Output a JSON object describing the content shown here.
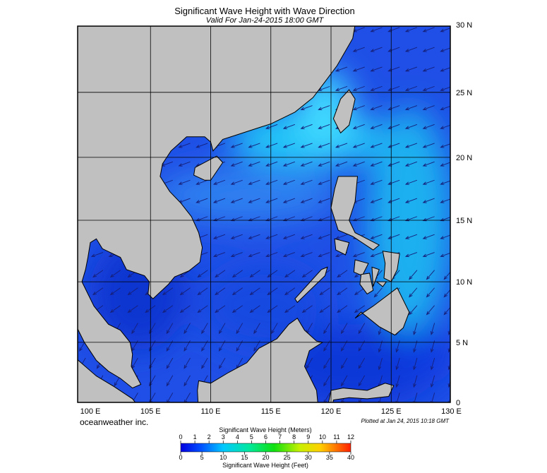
{
  "map": {
    "title": "Significant Wave Height with Wave Direction",
    "subtitle": "Valid For Jan-24-2015 18:00 GMT",
    "lon_labels": [
      "100 E",
      "105 E",
      "110 E",
      "115 E",
      "120 E",
      "125 E",
      "130 E"
    ],
    "lat_labels": [
      "30 N",
      "25 N",
      "20 N",
      "15 N",
      "10 N",
      "5 N",
      "0"
    ],
    "credit": "oceanweather inc.",
    "plotted": "Plotted at Jan 24, 2015 10:18 GMT"
  },
  "colorbar": {
    "meters_title": "Significant Wave Height (Meters)",
    "meters_ticks": [
      0,
      1,
      2,
      3,
      4,
      5,
      6,
      7,
      8,
      9,
      10,
      11,
      12
    ],
    "feet_ticks": [
      0,
      5,
      10,
      15,
      20,
      25,
      30,
      35,
      40
    ],
    "feet_title": "Significant Wave Height (Feet)"
  }
}
